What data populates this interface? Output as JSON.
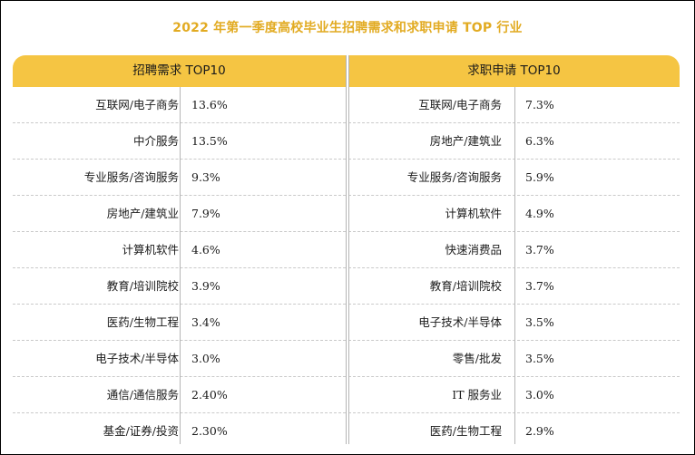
{
  "title": "2022 年第一季度高校毕业生招聘需求和求职申请 TOP 行业",
  "recruit": {
    "header": "招聘需求 TOP10",
    "rows": [
      {
        "industry": "互联网/电子商务",
        "value": "13.6%"
      },
      {
        "industry": "中介服务",
        "value": "13.5%"
      },
      {
        "industry": "专业服务/咨询服务",
        "value": "9.3%"
      },
      {
        "industry": "房地产/建筑业",
        "value": "7.9%"
      },
      {
        "industry": "计算机软件",
        "value": "4.6%"
      },
      {
        "industry": "教育/培训院校",
        "value": "3.9%"
      },
      {
        "industry": "医药/生物工程",
        "value": "3.4%"
      },
      {
        "industry": "电子技术/半导体",
        "value": "3.0%"
      },
      {
        "industry": "通信/通信服务",
        "value": "2.40%"
      },
      {
        "industry": "基金/证券/投资",
        "value": "2.30%"
      }
    ]
  },
  "apply": {
    "header": "求职申请 TOP10",
    "rows": [
      {
        "industry": "互联网/电子商务",
        "value": "7.3%"
      },
      {
        "industry": "房地产/建筑业",
        "value": "6.3%"
      },
      {
        "industry": "专业服务/咨询服务",
        "value": "5.9%"
      },
      {
        "industry": "计算机软件",
        "value": "4.9%"
      },
      {
        "industry": "快速消费品",
        "value": "3.7%"
      },
      {
        "industry": "教育/培训院校",
        "value": "3.7%"
      },
      {
        "industry": "电子技术/半导体",
        "value": "3.5%"
      },
      {
        "industry": "零售/批发",
        "value": "3.5%"
      },
      {
        "industry": "IT 服务业",
        "value": "3.0%"
      },
      {
        "industry": "医药/生物工程",
        "value": "2.9%"
      }
    ]
  },
  "colors": {
    "title": "#e2ab22",
    "header_bg": "#f5c543"
  }
}
